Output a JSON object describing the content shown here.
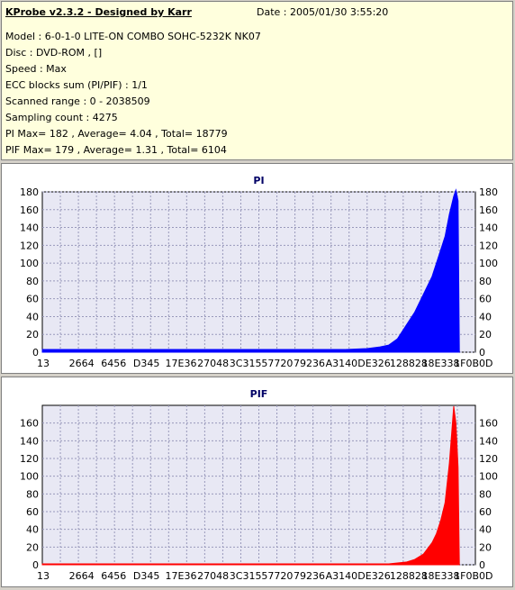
{
  "info": {
    "title": "KProbe v2.3.2 - Designed by Karr",
    "date": "Date : 2005/01/30 3:55:20",
    "model": "Model : 6-0-1-0 LITE-ON COMBO SOHC-5232K NK07",
    "disc": "Disc : DVD-ROM ,  []",
    "speed": "Speed : Max",
    "ecc": "ECC blocks sum (PI/PIF) : 1/1",
    "range": "Scanned range : 0 - 2038509",
    "sampling": "Sampling count : 4275",
    "pi_stats": "PI Max= 182 , Average= 4.04 , Total= 18779",
    "pif_stats": "PIF Max= 179 , Average= 1.31 , Total= 6104"
  },
  "chart_data": [
    {
      "type": "bar",
      "title": "PI",
      "color": "#0000ff",
      "xlabel": "",
      "ylabel": "",
      "ylim": [
        0,
        180
      ],
      "yticks": [
        0,
        20,
        40,
        60,
        80,
        100,
        120,
        140,
        160,
        180
      ],
      "xtick_labels": [
        "13",
        "2664",
        "6456",
        "D345",
        "17E36",
        "27048",
        "3C315",
        "57720",
        "79236",
        "A3140",
        "DE326",
        "128828",
        "18E338",
        "1F0B0D"
      ],
      "grid": true,
      "series": [
        {
          "values": [
            [
              0,
              3
            ],
            [
              5,
              3
            ],
            [
              10,
              3
            ],
            [
              15,
              3
            ],
            [
              20,
              3
            ],
            [
              25,
              3
            ],
            [
              30,
              3
            ],
            [
              35,
              3
            ],
            [
              40,
              3
            ],
            [
              45,
              3
            ],
            [
              50,
              3
            ],
            [
              55,
              3
            ],
            [
              60,
              3
            ],
            [
              65,
              3
            ],
            [
              70,
              3
            ],
            [
              75,
              4
            ],
            [
              78,
              6
            ],
            [
              80,
              8
            ],
            [
              82,
              15
            ],
            [
              84,
              30
            ],
            [
              86,
              45
            ],
            [
              88,
              65
            ],
            [
              90,
              85
            ],
            [
              91,
              100
            ],
            [
              92,
              115
            ],
            [
              93,
              130
            ],
            [
              94,
              155
            ],
            [
              95,
              175
            ],
            [
              95.5,
              182
            ],
            [
              96,
              170
            ],
            [
              96.3,
              0
            ]
          ]
        }
      ]
    },
    {
      "type": "bar",
      "title": "PIF",
      "color": "#ff0000",
      "xlabel": "",
      "ylabel": "",
      "ylim": [
        0,
        180
      ],
      "yticks": [
        0,
        20,
        40,
        60,
        80,
        100,
        120,
        140,
        160
      ],
      "xtick_labels": [
        "13",
        "2664",
        "6456",
        "D345",
        "17E36",
        "27048",
        "3C315",
        "57720",
        "79236",
        "A3140",
        "DE326",
        "128828",
        "18E338",
        "1F0B0D"
      ],
      "grid": true,
      "series": [
        {
          "values": [
            [
              0,
              1
            ],
            [
              10,
              1
            ],
            [
              20,
              1
            ],
            [
              30,
              1
            ],
            [
              40,
              1
            ],
            [
              50,
              1
            ],
            [
              60,
              1
            ],
            [
              70,
              1
            ],
            [
              80,
              1
            ],
            [
              84,
              3
            ],
            [
              86,
              6
            ],
            [
              88,
              12
            ],
            [
              90,
              25
            ],
            [
              91,
              35
            ],
            [
              92,
              50
            ],
            [
              93,
              70
            ],
            [
              94,
              115
            ],
            [
              95,
              179
            ],
            [
              95.5,
              160
            ],
            [
              96,
              110
            ],
            [
              96.3,
              0
            ]
          ]
        }
      ]
    }
  ]
}
